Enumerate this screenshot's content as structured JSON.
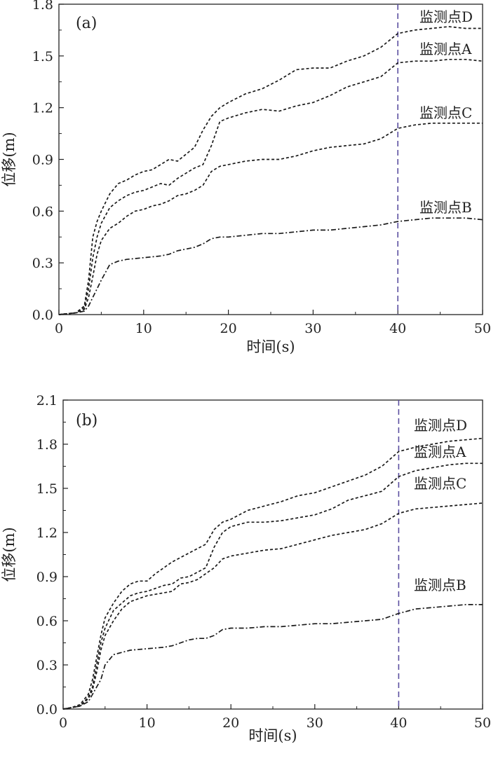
{
  "chart_data": [
    {
      "type": "line",
      "panel_label": "(a)",
      "xlabel": "时间(s)",
      "ylabel": "位移(m)",
      "xlim": [
        0,
        50
      ],
      "ylim": [
        0,
        1.8
      ],
      "xticks": [
        0,
        10,
        20,
        30,
        40,
        50
      ],
      "xtick_labels": [
        "0",
        "10",
        "20",
        "30",
        "40",
        "50"
      ],
      "yticks": [
        0,
        0.3,
        0.6,
        0.9,
        1.2,
        1.5,
        1.8
      ],
      "ytick_labels": [
        "0.0",
        "0.3",
        "0.6",
        "0.9",
        "1.2",
        "1.5",
        "1.8"
      ],
      "grid": false,
      "vertical_marker": {
        "x": 40,
        "color": "#5b4fa0",
        "style": "dashed"
      },
      "series": [
        {
          "name": "监测点D",
          "dash": "short",
          "x": [
            0,
            2,
            3,
            3.5,
            4,
            4.5,
            5,
            6,
            7,
            8,
            9,
            10,
            11,
            12,
            13,
            14,
            15,
            16,
            17,
            18,
            19,
            20,
            22,
            24,
            26,
            28,
            30,
            32,
            34,
            36,
            38,
            40,
            42,
            44,
            46,
            48,
            50
          ],
          "y": [
            0,
            0.01,
            0.05,
            0.2,
            0.45,
            0.54,
            0.6,
            0.7,
            0.76,
            0.78,
            0.81,
            0.83,
            0.84,
            0.87,
            0.9,
            0.89,
            0.93,
            0.97,
            1.07,
            1.15,
            1.2,
            1.23,
            1.28,
            1.31,
            1.36,
            1.42,
            1.43,
            1.43,
            1.47,
            1.5,
            1.55,
            1.63,
            1.65,
            1.66,
            1.67,
            1.66,
            1.66
          ]
        },
        {
          "name": "监测点A",
          "dash": "short",
          "x": [
            0,
            2,
            3,
            3.5,
            4,
            4.5,
            5,
            6,
            7,
            8,
            9,
            10,
            11,
            12,
            13,
            14,
            15,
            16,
            17,
            18,
            19,
            20,
            22,
            24,
            26,
            28,
            30,
            32,
            34,
            36,
            38,
            40,
            42,
            44,
            46,
            48,
            50
          ],
          "y": [
            0,
            0.01,
            0.04,
            0.15,
            0.33,
            0.45,
            0.53,
            0.62,
            0.66,
            0.69,
            0.71,
            0.72,
            0.74,
            0.76,
            0.75,
            0.79,
            0.82,
            0.85,
            0.87,
            0.98,
            1.12,
            1.14,
            1.17,
            1.19,
            1.18,
            1.21,
            1.23,
            1.27,
            1.32,
            1.35,
            1.38,
            1.46,
            1.47,
            1.47,
            1.48,
            1.48,
            1.47
          ]
        },
        {
          "name": "监测点C",
          "dash": "short",
          "x": [
            0,
            2,
            3,
            3.5,
            4,
            4.5,
            5,
            6,
            7,
            8,
            9,
            10,
            11,
            12,
            13,
            14,
            15,
            16,
            17,
            18,
            19,
            20,
            22,
            24,
            26,
            28,
            30,
            32,
            34,
            36,
            38,
            40,
            42,
            44,
            46,
            48,
            50
          ],
          "y": [
            0,
            0.01,
            0.03,
            0.1,
            0.22,
            0.35,
            0.43,
            0.5,
            0.53,
            0.57,
            0.6,
            0.61,
            0.63,
            0.64,
            0.66,
            0.69,
            0.7,
            0.72,
            0.75,
            0.83,
            0.86,
            0.87,
            0.89,
            0.9,
            0.9,
            0.92,
            0.95,
            0.97,
            0.98,
            0.99,
            1.02,
            1.08,
            1.1,
            1.11,
            1.11,
            1.11,
            1.11
          ]
        },
        {
          "name": "监测点B",
          "dash": "dashdot",
          "x": [
            0,
            2,
            3,
            3.5,
            4,
            4.5,
            5,
            6,
            7,
            8,
            10,
            12,
            13,
            14,
            15,
            16,
            17,
            18,
            19,
            20,
            22,
            24,
            26,
            28,
            30,
            32,
            34,
            36,
            38,
            40,
            42,
            44,
            46,
            48,
            50
          ],
          "y": [
            0,
            0.01,
            0.02,
            0.05,
            0.1,
            0.15,
            0.2,
            0.29,
            0.31,
            0.32,
            0.33,
            0.34,
            0.35,
            0.37,
            0.38,
            0.39,
            0.41,
            0.44,
            0.45,
            0.45,
            0.46,
            0.47,
            0.47,
            0.48,
            0.49,
            0.49,
            0.5,
            0.51,
            0.52,
            0.54,
            0.55,
            0.56,
            0.56,
            0.56,
            0.55
          ]
        }
      ]
    },
    {
      "type": "line",
      "panel_label": "(b)",
      "xlabel": "时间(s)",
      "ylabel": "位移(m)",
      "xlim": [
        0,
        50
      ],
      "ylim": [
        0,
        2.1
      ],
      "xticks": [
        0,
        10,
        20,
        30,
        40,
        50
      ],
      "xtick_labels": [
        "0",
        "10",
        "20",
        "30",
        "40",
        "50"
      ],
      "yticks": [
        0,
        0.3,
        0.6,
        0.9,
        1.2,
        1.5,
        1.8,
        2.1
      ],
      "ytick_labels": [
        "0.0",
        "0.3",
        "0.6",
        "0.9",
        "1.2",
        "1.5",
        "1.8",
        "2.1"
      ],
      "grid": false,
      "vertical_marker": {
        "x": 40,
        "color": "#5b4fa0",
        "style": "dashed"
      },
      "series": [
        {
          "name": "监测点D",
          "dash": "short",
          "x": [
            0,
            1,
            2,
            3,
            3.5,
            4,
            4.5,
            5,
            6,
            7,
            8,
            9,
            10,
            11,
            12,
            13,
            14,
            15,
            16,
            17,
            18,
            19,
            20,
            22,
            24,
            26,
            28,
            30,
            32,
            34,
            36,
            38,
            40,
            42,
            44,
            46,
            48,
            50
          ],
          "y": [
            0,
            0.01,
            0.03,
            0.1,
            0.2,
            0.35,
            0.5,
            0.62,
            0.72,
            0.8,
            0.85,
            0.87,
            0.87,
            0.92,
            0.96,
            1.0,
            1.03,
            1.06,
            1.09,
            1.12,
            1.22,
            1.27,
            1.29,
            1.35,
            1.38,
            1.41,
            1.45,
            1.47,
            1.51,
            1.55,
            1.59,
            1.65,
            1.75,
            1.78,
            1.8,
            1.82,
            1.83,
            1.84
          ]
        },
        {
          "name": "监测点A",
          "dash": "short",
          "x": [
            0,
            1,
            2,
            3,
            3.5,
            4,
            4.5,
            5,
            6,
            7,
            8,
            9,
            10,
            11,
            12,
            13,
            14,
            15,
            16,
            17,
            18,
            19,
            20,
            22,
            24,
            26,
            28,
            30,
            32,
            34,
            36,
            38,
            40,
            42,
            44,
            46,
            48,
            50
          ],
          "y": [
            0,
            0.01,
            0.02,
            0.08,
            0.15,
            0.3,
            0.45,
            0.55,
            0.67,
            0.72,
            0.77,
            0.79,
            0.8,
            0.82,
            0.84,
            0.85,
            0.89,
            0.9,
            0.93,
            0.96,
            1.1,
            1.2,
            1.24,
            1.27,
            1.27,
            1.28,
            1.3,
            1.32,
            1.36,
            1.42,
            1.45,
            1.48,
            1.58,
            1.62,
            1.64,
            1.66,
            1.67,
            1.67
          ]
        },
        {
          "name": "监测点C",
          "dash": "short",
          "x": [
            0,
            1,
            2,
            3,
            3.5,
            4,
            4.5,
            5,
            6,
            7,
            8,
            9,
            10,
            11,
            12,
            13,
            14,
            15,
            16,
            17,
            18,
            19,
            20,
            22,
            24,
            26,
            28,
            30,
            32,
            34,
            36,
            38,
            40,
            42,
            44,
            46,
            48,
            50
          ],
          "y": [
            0,
            0.01,
            0.02,
            0.07,
            0.13,
            0.25,
            0.4,
            0.5,
            0.6,
            0.68,
            0.73,
            0.75,
            0.77,
            0.78,
            0.79,
            0.8,
            0.85,
            0.86,
            0.88,
            0.92,
            0.96,
            1.02,
            1.04,
            1.06,
            1.08,
            1.09,
            1.12,
            1.15,
            1.18,
            1.2,
            1.22,
            1.26,
            1.33,
            1.36,
            1.37,
            1.38,
            1.39,
            1.4
          ]
        },
        {
          "name": "监测点B",
          "dash": "dashdot",
          "x": [
            0,
            1,
            2,
            3,
            3.5,
            4,
            4.5,
            5,
            6,
            8,
            10,
            12,
            13,
            14,
            15,
            16,
            17,
            18,
            19,
            20,
            22,
            24,
            26,
            28,
            30,
            32,
            34,
            36,
            38,
            40,
            42,
            44,
            46,
            48,
            50
          ],
          "y": [
            0,
            0.01,
            0.02,
            0.05,
            0.1,
            0.15,
            0.2,
            0.3,
            0.37,
            0.4,
            0.41,
            0.42,
            0.43,
            0.45,
            0.47,
            0.48,
            0.48,
            0.5,
            0.54,
            0.55,
            0.55,
            0.56,
            0.56,
            0.57,
            0.58,
            0.58,
            0.59,
            0.6,
            0.61,
            0.65,
            0.68,
            0.69,
            0.7,
            0.71,
            0.71
          ]
        }
      ]
    }
  ]
}
